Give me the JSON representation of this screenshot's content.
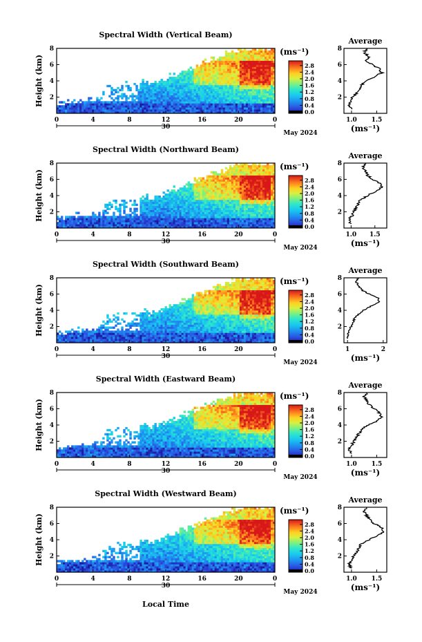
{
  "figure": {
    "xlabel": "Local Time",
    "ylabel": "Height (km)",
    "colorbar_unit": "(ms⁻¹)",
    "date_day": "30",
    "date_month": "May 2024",
    "average_title": "Average",
    "average_unit": "(ms⁻¹)"
  },
  "chart_data": [
    {
      "type": "heatmap",
      "title": "Spectral Width (Vertical Beam)",
      "x_ticks": [
        "0",
        "4",
        "8",
        "12",
        "16",
        "20",
        "0"
      ],
      "y_ticks": [
        "2",
        "4",
        "6",
        "8"
      ],
      "xlim": [
        0,
        24
      ],
      "ylim": [
        0,
        8
      ],
      "colorbar": {
        "ticks": [
          "0.0",
          "0.4",
          "0.8",
          "1.2",
          "1.6",
          "2.0",
          "2.4",
          "2.8"
        ],
        "range": [
          0,
          3.0
        ]
      },
      "average_profile": {
        "x_ticks": [
          "1.0",
          "1.5"
        ],
        "xlim": [
          0.85,
          1.7
        ],
        "y_ticks": [
          "2",
          "4",
          "6",
          "8"
        ],
        "ylim": [
          0,
          8
        ],
        "profile": [
          [
            1.0,
            0.5
          ],
          [
            0.95,
            1.0
          ],
          [
            0.98,
            1.5
          ],
          [
            1.02,
            2.0
          ],
          [
            1.1,
            2.5
          ],
          [
            1.15,
            3.0
          ],
          [
            1.2,
            3.5
          ],
          [
            1.3,
            4.0
          ],
          [
            1.45,
            4.5
          ],
          [
            1.6,
            5.0
          ],
          [
            1.55,
            5.5
          ],
          [
            1.4,
            6.0
          ],
          [
            1.3,
            6.5
          ],
          [
            1.35,
            7.0
          ],
          [
            1.25,
            7.5
          ],
          [
            1.3,
            8.0
          ]
        ]
      }
    },
    {
      "type": "heatmap",
      "title": "Spectral Width (Northward Beam)",
      "x_ticks": [
        "0",
        "4",
        "8",
        "12",
        "16",
        "20",
        "0"
      ],
      "y_ticks": [
        "2",
        "4",
        "6",
        "8"
      ],
      "xlim": [
        0,
        24
      ],
      "ylim": [
        0,
        8
      ],
      "colorbar": {
        "ticks": [
          "0.0",
          "0.4",
          "0.8",
          "1.2",
          "1.6",
          "2.0",
          "2.4",
          "2.8"
        ],
        "range": [
          0,
          3.0
        ]
      },
      "average_profile": {
        "x_ticks": [
          "1.0",
          "1.5"
        ],
        "xlim": [
          0.85,
          1.75
        ],
        "y_ticks": [
          "2",
          "4",
          "6",
          "8"
        ],
        "ylim": [
          0,
          8
        ],
        "profile": [
          [
            1.0,
            0.5
          ],
          [
            0.95,
            1.0
          ],
          [
            1.02,
            1.5
          ],
          [
            1.05,
            2.0
          ],
          [
            1.1,
            2.5
          ],
          [
            1.15,
            3.0
          ],
          [
            1.2,
            3.5
          ],
          [
            1.35,
            4.0
          ],
          [
            1.5,
            4.5
          ],
          [
            1.65,
            5.0
          ],
          [
            1.6,
            5.5
          ],
          [
            1.45,
            6.0
          ],
          [
            1.35,
            6.5
          ],
          [
            1.3,
            7.0
          ],
          [
            1.25,
            7.5
          ],
          [
            1.3,
            8.0
          ]
        ]
      }
    },
    {
      "type": "heatmap",
      "title": "Spectral Width (Southward Beam)",
      "x_ticks": [
        "0",
        "4",
        "8",
        "12",
        "16",
        "20",
        "0"
      ],
      "y_ticks": [
        "2",
        "4",
        "6",
        "8"
      ],
      "xlim": [
        0,
        24
      ],
      "ylim": [
        0,
        8
      ],
      "colorbar": {
        "ticks": [
          "0.0",
          "0.4",
          "0.8",
          "1.2",
          "1.6",
          "2.0",
          "2.4",
          "2.8"
        ],
        "range": [
          0,
          3.0
        ]
      },
      "average_profile": {
        "x_ticks": [
          "1",
          "2"
        ],
        "xlim": [
          0.9,
          2.1
        ],
        "y_ticks": [
          "2",
          "4",
          "6",
          "8"
        ],
        "ylim": [
          0,
          8
        ],
        "profile": [
          [
            1.0,
            0.5
          ],
          [
            1.0,
            1.0
          ],
          [
            1.05,
            1.5
          ],
          [
            1.1,
            2.0
          ],
          [
            1.15,
            2.5
          ],
          [
            1.2,
            3.0
          ],
          [
            1.3,
            3.5
          ],
          [
            1.45,
            4.0
          ],
          [
            1.65,
            4.5
          ],
          [
            1.9,
            5.0
          ],
          [
            1.85,
            5.5
          ],
          [
            1.6,
            6.0
          ],
          [
            1.4,
            6.5
          ],
          [
            1.3,
            7.0
          ],
          [
            1.25,
            7.5
          ],
          [
            1.3,
            8.0
          ]
        ]
      }
    },
    {
      "type": "heatmap",
      "title": "Spectral Width (Eastward Beam)",
      "x_ticks": [
        "0",
        "4",
        "8",
        "12",
        "16",
        "20",
        "0"
      ],
      "y_ticks": [
        "2",
        "4",
        "6",
        "8"
      ],
      "xlim": [
        0,
        24
      ],
      "ylim": [
        0,
        8
      ],
      "colorbar": {
        "ticks": [
          "0.0",
          "0.4",
          "0.8",
          "1.2",
          "1.6",
          "2.0",
          "2.4",
          "2.8"
        ],
        "range": [
          0,
          3.0
        ]
      },
      "average_profile": {
        "x_ticks": [
          "1.0",
          "1.5"
        ],
        "xlim": [
          0.85,
          1.7
        ],
        "y_ticks": [
          "2",
          "4",
          "6",
          "8"
        ],
        "ylim": [
          0,
          8
        ],
        "profile": [
          [
            1.0,
            0.5
          ],
          [
            0.95,
            1.0
          ],
          [
            1.0,
            1.5
          ],
          [
            1.05,
            2.0
          ],
          [
            1.1,
            2.5
          ],
          [
            1.15,
            3.0
          ],
          [
            1.2,
            3.5
          ],
          [
            1.35,
            4.0
          ],
          [
            1.5,
            4.5
          ],
          [
            1.6,
            5.0
          ],
          [
            1.55,
            5.5
          ],
          [
            1.45,
            6.0
          ],
          [
            1.35,
            6.5
          ],
          [
            1.3,
            7.0
          ],
          [
            1.25,
            7.5
          ],
          [
            1.3,
            8.0
          ]
        ]
      }
    },
    {
      "type": "heatmap",
      "title": "Spectral Width (Westward Beam)",
      "x_ticks": [
        "0",
        "4",
        "8",
        "12",
        "16",
        "20",
        "0"
      ],
      "y_ticks": [
        "2",
        "4",
        "6",
        "8"
      ],
      "xlim": [
        0,
        24
      ],
      "ylim": [
        0,
        8
      ],
      "colorbar": {
        "ticks": [
          "0.0",
          "0.4",
          "0.8",
          "1.2",
          "1.6",
          "2.0",
          "2.4",
          "2.8"
        ],
        "range": [
          0,
          3.0
        ]
      },
      "average_profile": {
        "x_ticks": [
          "1.0",
          "1.5"
        ],
        "xlim": [
          0.85,
          1.7
        ],
        "y_ticks": [
          "2",
          "4",
          "6",
          "8"
        ],
        "ylim": [
          0,
          8
        ],
        "profile": [
          [
            1.0,
            0.5
          ],
          [
            0.95,
            1.0
          ],
          [
            1.0,
            1.5
          ],
          [
            1.05,
            2.0
          ],
          [
            1.1,
            2.5
          ],
          [
            1.15,
            3.0
          ],
          [
            1.2,
            3.5
          ],
          [
            1.35,
            4.0
          ],
          [
            1.5,
            4.5
          ],
          [
            1.65,
            5.0
          ],
          [
            1.6,
            5.5
          ],
          [
            1.45,
            6.0
          ],
          [
            1.35,
            6.5
          ],
          [
            1.3,
            7.0
          ],
          [
            1.25,
            7.5
          ],
          [
            1.3,
            8.0
          ]
        ]
      }
    }
  ]
}
